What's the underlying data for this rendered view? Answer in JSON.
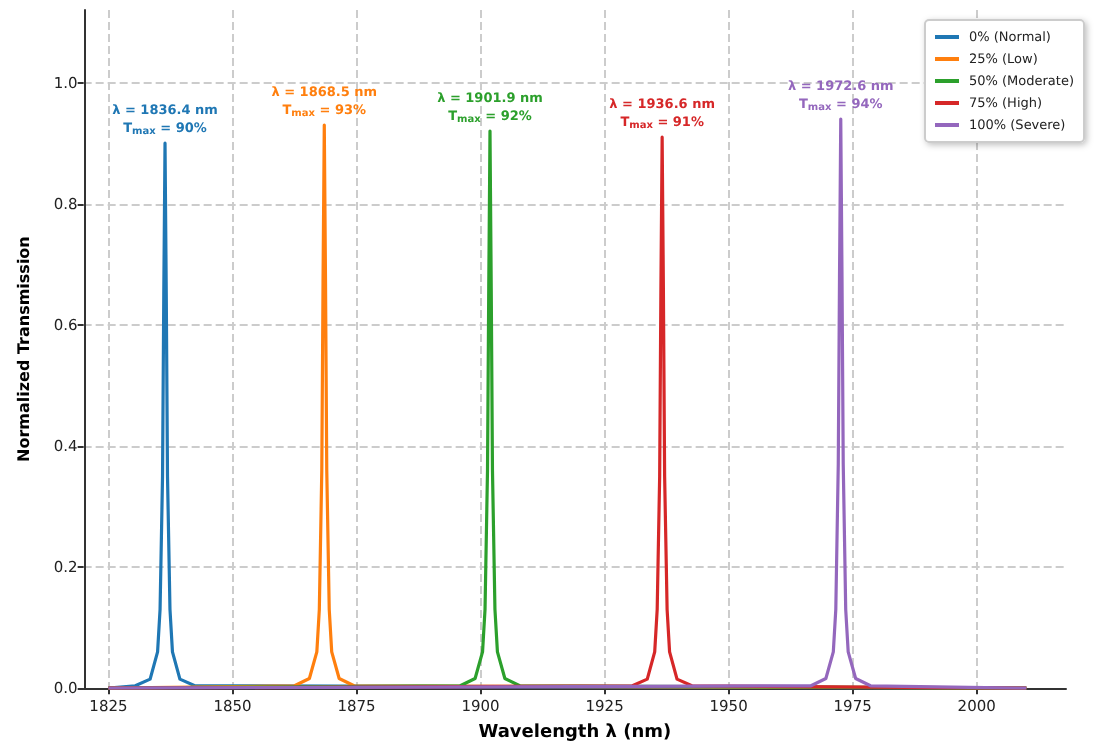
{
  "chart_data": {
    "type": "line",
    "xlabel": "Wavelength λ (nm)",
    "ylabel": "Normalized Transmission",
    "xlim": [
      1820,
      2018
    ],
    "xticks": [
      1825,
      1850,
      1875,
      1900,
      1925,
      1950,
      1975,
      2000
    ],
    "ylim": [
      0,
      1.12
    ],
    "yticks": [
      {
        "value": 0,
        "label": "0.0"
      },
      0.2,
      0.4,
      0.6,
      0.8,
      {
        "value": 1,
        "label": "1.0"
      }
    ],
    "grid": true,
    "legend": "top right",
    "marker": "none",
    "line_style": "solid",
    "series": [
      {
        "name": "0% (Normal)",
        "color": "#1f77b4",
        "x": [
          1825,
          1830.4,
          1833.4,
          1834.9,
          1835.4,
          1835.9,
          1836.15,
          1836.4,
          1836.65,
          1836.9,
          1837.4,
          1837.9,
          1839.4,
          1842.4,
          2010
        ],
        "values": [
          0,
          0.004,
          0.015,
          0.06,
          0.13,
          0.35,
          0.65,
          0.9,
          0.65,
          0.35,
          0.13,
          0.06,
          0.015,
          0.004,
          0
        ]
      },
      {
        "name": "25% (Low)",
        "color": "#ff7f0e",
        "x": [
          1825,
          1862.5,
          1865.5,
          1867,
          1867.5,
          1868,
          1868.25,
          1868.5,
          1868.75,
          1869,
          1869.5,
          1870,
          1871.5,
          1874.5,
          2010
        ],
        "values": [
          0,
          0.004,
          0.016,
          0.06,
          0.13,
          0.36,
          0.67,
          0.93,
          0.67,
          0.36,
          0.13,
          0.06,
          0.016,
          0.004,
          0
        ]
      },
      {
        "name": "50% (Moderate)",
        "color": "#2ca02c",
        "x": [
          1825,
          1895.9,
          1898.9,
          1900.4,
          1900.9,
          1901.4,
          1901.65,
          1901.9,
          1902.15,
          1902.4,
          1902.9,
          1903.4,
          1904.9,
          1907.9,
          2010
        ],
        "values": [
          0,
          0.004,
          0.016,
          0.06,
          0.13,
          0.36,
          0.66,
          0.92,
          0.66,
          0.36,
          0.13,
          0.06,
          0.016,
          0.004,
          0
        ]
      },
      {
        "name": "75% (High)",
        "color": "#d62728",
        "x": [
          1825,
          1930.6,
          1933.6,
          1935.1,
          1935.6,
          1936.1,
          1936.35,
          1936.6,
          1936.85,
          1937.1,
          1937.6,
          1938.1,
          1939.6,
          1942.6,
          2010
        ],
        "values": [
          0,
          0.004,
          0.015,
          0.06,
          0.13,
          0.35,
          0.66,
          0.91,
          0.66,
          0.35,
          0.13,
          0.06,
          0.015,
          0.004,
          0
        ]
      },
      {
        "name": "100% (Severe)",
        "color": "#9467bd",
        "x": [
          1825,
          1966.6,
          1969.6,
          1971.1,
          1971.6,
          1972.1,
          1972.35,
          1972.6,
          1972.85,
          1973.1,
          1973.6,
          1974.1,
          1975.6,
          1978.6,
          2010
        ],
        "values": [
          0,
          0.004,
          0.016,
          0.06,
          0.13,
          0.37,
          0.68,
          0.94,
          0.68,
          0.37,
          0.13,
          0.06,
          0.016,
          0.004,
          0
        ]
      }
    ],
    "annotations": [
      {
        "text": "λ = 1836.4 nm\nT$_{max}$ = 90%",
        "x": 1836.4,
        "y": 0.9
      },
      {
        "text": "λ = 1868.5 nm\nT$_{max}$ = 93%",
        "x": 1868.5,
        "y": 0.93
      },
      {
        "text": "λ = 1901.9 nm\nT$_{max}$ = 92%",
        "x": 1901.9,
        "y": 0.92
      },
      {
        "text": "λ = 1936.6 nm\nT$_{max}$ = 91%",
        "x": 1936.6,
        "y": 0.91
      },
      {
        "text": "λ = 1972.6 nm\nT$_{max}$ = 94%",
        "x": 1972.6,
        "y": 0.94
      }
    ]
  }
}
